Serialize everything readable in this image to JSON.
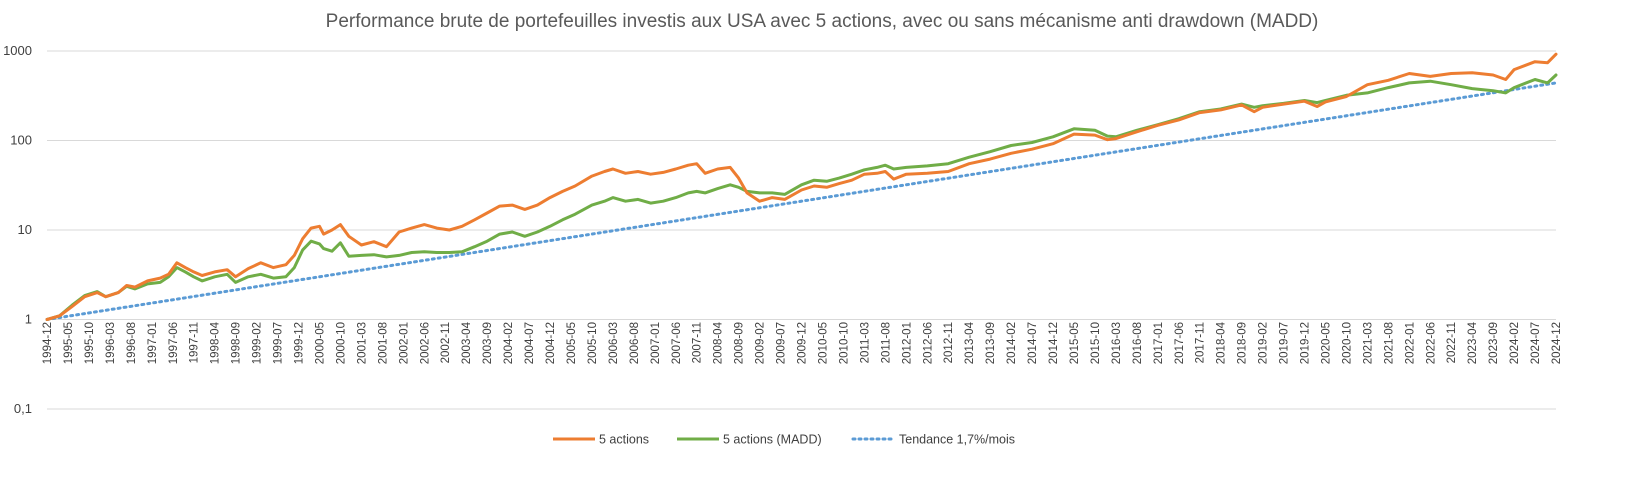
{
  "chart_data": {
    "type": "line",
    "title": "Performance brute de portefeuilles investis aux USA avec 5 actions, avec ou sans mécanisme anti drawdown (MADD)",
    "xlabel": "",
    "ylabel": "",
    "y_scale": "log",
    "ylim": [
      0.1,
      1000
    ],
    "y_ticks": [
      0.1,
      1,
      10,
      100,
      1000
    ],
    "y_tick_labels": [
      "0,1",
      "1",
      "10",
      "100",
      "1000"
    ],
    "x_range": [
      "1994-12",
      "2024-12"
    ],
    "x_tick_labels": [
      "1994-12",
      "1995-05",
      "1995-10",
      "1996-03",
      "1996-08",
      "1997-01",
      "1997-06",
      "1997-11",
      "1998-04",
      "1998-09",
      "1999-02",
      "1999-07",
      "1999-12",
      "2000-05",
      "2000-10",
      "2001-03",
      "2001-08",
      "2002-01",
      "2002-06",
      "2002-11",
      "2003-04",
      "2003-09",
      "2004-02",
      "2004-07",
      "2004-12",
      "2005-05",
      "2005-10",
      "2006-03",
      "2006-08",
      "2007-01",
      "2007-06",
      "2007-11",
      "2008-04",
      "2008-09",
      "2009-02",
      "2009-07",
      "2009-12",
      "2010-05",
      "2010-10",
      "2011-03",
      "2011-08",
      "2012-01",
      "2012-06",
      "2012-11",
      "2013-04",
      "2013-09",
      "2014-02",
      "2014-07",
      "2014-12",
      "2015-05",
      "2015-10",
      "2016-03",
      "2016-08",
      "2017-01",
      "2017-06",
      "2017-11",
      "2018-04",
      "2018-09",
      "2019-02",
      "2019-07",
      "2019-12",
      "2020-05",
      "2020-10",
      "2021-03",
      "2021-08",
      "2022-01",
      "2022-06",
      "2022-11",
      "2023-04",
      "2023-09",
      "2024-02",
      "2024-07",
      "2024-12"
    ],
    "grid": "horizontal",
    "legend_position": "bottom",
    "series": [
      {
        "name": "5 actions",
        "color": "#ED7D31",
        "style": "solid",
        "points": [
          [
            "1994-12",
            1
          ],
          [
            "1995-03",
            1.1
          ],
          [
            "1995-06",
            1.4
          ],
          [
            "1995-09",
            1.8
          ],
          [
            "1995-12",
            2.0
          ],
          [
            "1996-02",
            1.8
          ],
          [
            "1996-05",
            2.0
          ],
          [
            "1996-07",
            2.4
          ],
          [
            "1996-09",
            2.3
          ],
          [
            "1996-12",
            2.7
          ],
          [
            "1997-03",
            2.9
          ],
          [
            "1997-05",
            3.2
          ],
          [
            "1997-07",
            4.3
          ],
          [
            "1997-09",
            3.8
          ],
          [
            "1997-11",
            3.4
          ],
          [
            "1998-01",
            3.1
          ],
          [
            "1998-04",
            3.4
          ],
          [
            "1998-07",
            3.6
          ],
          [
            "1998-09",
            3.0
          ],
          [
            "1998-12",
            3.7
          ],
          [
            "1999-03",
            4.3
          ],
          [
            "1999-06",
            3.8
          ],
          [
            "1999-09",
            4.1
          ],
          [
            "1999-11",
            5.2
          ],
          [
            "2000-01",
            8.0
          ],
          [
            "2000-03",
            10.5
          ],
          [
            "2000-05",
            11.0
          ],
          [
            "2000-06",
            9.0
          ],
          [
            "2000-08",
            10.0
          ],
          [
            "2000-10",
            11.5
          ],
          [
            "2000-12",
            8.5
          ],
          [
            "2001-03",
            6.8
          ],
          [
            "2001-06",
            7.4
          ],
          [
            "2001-09",
            6.5
          ],
          [
            "2001-12",
            9.5
          ],
          [
            "2002-03",
            10.5
          ],
          [
            "2002-06",
            11.5
          ],
          [
            "2002-09",
            10.5
          ],
          [
            "2002-12",
            10.0
          ],
          [
            "2003-03",
            11.0
          ],
          [
            "2003-06",
            13.0
          ],
          [
            "2003-09",
            15.5
          ],
          [
            "2003-12",
            18.5
          ],
          [
            "2004-03",
            19.0
          ],
          [
            "2004-06",
            17.0
          ],
          [
            "2004-09",
            19.0
          ],
          [
            "2004-12",
            23.0
          ],
          [
            "2005-03",
            27.0
          ],
          [
            "2005-06",
            31.0
          ],
          [
            "2005-10",
            40.0
          ],
          [
            "2006-01",
            45.0
          ],
          [
            "2006-03",
            48.0
          ],
          [
            "2006-06",
            43.0
          ],
          [
            "2006-09",
            45.0
          ],
          [
            "2006-12",
            42.0
          ],
          [
            "2007-03",
            44.0
          ],
          [
            "2007-06",
            48.0
          ],
          [
            "2007-09",
            53.0
          ],
          [
            "2007-11",
            55.0
          ],
          [
            "2008-01",
            43.0
          ],
          [
            "2008-04",
            48.0
          ],
          [
            "2008-07",
            50.0
          ],
          [
            "2008-09",
            38.0
          ],
          [
            "2008-11",
            26.0
          ],
          [
            "2009-02",
            21.0
          ],
          [
            "2009-05",
            23.0
          ],
          [
            "2009-08",
            22.0
          ],
          [
            "2009-12",
            28.0
          ],
          [
            "2010-03",
            31.0
          ],
          [
            "2010-06",
            30.0
          ],
          [
            "2010-09",
            33.0
          ],
          [
            "2010-12",
            36.0
          ],
          [
            "2011-03",
            42.0
          ],
          [
            "2011-06",
            43.0
          ],
          [
            "2011-08",
            45.0
          ],
          [
            "2011-10",
            37.0
          ],
          [
            "2012-01",
            42.0
          ],
          [
            "2012-06",
            43.0
          ],
          [
            "2012-11",
            45.0
          ],
          [
            "2013-04",
            55.0
          ],
          [
            "2013-09",
            62.0
          ],
          [
            "2014-02",
            72.0
          ],
          [
            "2014-07",
            80.0
          ],
          [
            "2014-12",
            92.0
          ],
          [
            "2015-05",
            118.0
          ],
          [
            "2015-10",
            115.0
          ],
          [
            "2016-01",
            102.0
          ],
          [
            "2016-03",
            105.0
          ],
          [
            "2016-08",
            125.0
          ],
          [
            "2017-01",
            148.0
          ],
          [
            "2017-06",
            170.0
          ],
          [
            "2017-11",
            205.0
          ],
          [
            "2018-04",
            220.0
          ],
          [
            "2018-09",
            250.0
          ],
          [
            "2018-12",
            210.0
          ],
          [
            "2019-02",
            235.0
          ],
          [
            "2019-07",
            255.0
          ],
          [
            "2019-12",
            275.0
          ],
          [
            "2020-03",
            240.0
          ],
          [
            "2020-05",
            270.0
          ],
          [
            "2020-10",
            310.0
          ],
          [
            "2021-03",
            420.0
          ],
          [
            "2021-08",
            470.0
          ],
          [
            "2022-01",
            560.0
          ],
          [
            "2022-06",
            520.0
          ],
          [
            "2022-11",
            560.0
          ],
          [
            "2023-04",
            570.0
          ],
          [
            "2023-09",
            540.0
          ],
          [
            "2023-12",
            480.0
          ],
          [
            "2024-02",
            620.0
          ],
          [
            "2024-07",
            760.0
          ],
          [
            "2024-10",
            740.0
          ],
          [
            "2024-12",
            920.0
          ]
        ]
      },
      {
        "name": "5 actions (MADD)",
        "color": "#70AD47",
        "style": "solid",
        "points": [
          [
            "1994-12",
            1
          ],
          [
            "1995-03",
            1.1
          ],
          [
            "1995-06",
            1.45
          ],
          [
            "1995-09",
            1.85
          ],
          [
            "1995-12",
            2.05
          ],
          [
            "1996-02",
            1.8
          ],
          [
            "1996-05",
            2.0
          ],
          [
            "1996-07",
            2.35
          ],
          [
            "1996-09",
            2.2
          ],
          [
            "1996-12",
            2.5
          ],
          [
            "1997-03",
            2.6
          ],
          [
            "1997-05",
            3.0
          ],
          [
            "1997-07",
            3.8
          ],
          [
            "1997-09",
            3.4
          ],
          [
            "1997-11",
            3.0
          ],
          [
            "1998-01",
            2.7
          ],
          [
            "1998-04",
            3.0
          ],
          [
            "1998-07",
            3.2
          ],
          [
            "1998-09",
            2.6
          ],
          [
            "1998-12",
            3.0
          ],
          [
            "1999-03",
            3.2
          ],
          [
            "1999-06",
            2.9
          ],
          [
            "1999-09",
            3.0
          ],
          [
            "1999-11",
            3.8
          ],
          [
            "2000-01",
            6.0
          ],
          [
            "2000-03",
            7.5
          ],
          [
            "2000-05",
            7.0
          ],
          [
            "2000-06",
            6.2
          ],
          [
            "2000-08",
            5.8
          ],
          [
            "2000-10",
            7.2
          ],
          [
            "2000-12",
            5.1
          ],
          [
            "2001-03",
            5.2
          ],
          [
            "2001-06",
            5.3
          ],
          [
            "2001-09",
            5.0
          ],
          [
            "2001-12",
            5.2
          ],
          [
            "2002-03",
            5.6
          ],
          [
            "2002-06",
            5.7
          ],
          [
            "2002-09",
            5.6
          ],
          [
            "2002-12",
            5.6
          ],
          [
            "2003-03",
            5.7
          ],
          [
            "2003-06",
            6.5
          ],
          [
            "2003-09",
            7.5
          ],
          [
            "2003-12",
            9.0
          ],
          [
            "2004-03",
            9.5
          ],
          [
            "2004-06",
            8.5
          ],
          [
            "2004-09",
            9.5
          ],
          [
            "2004-12",
            11.0
          ],
          [
            "2005-03",
            13.0
          ],
          [
            "2005-06",
            15.0
          ],
          [
            "2005-10",
            19.0
          ],
          [
            "2006-01",
            21.0
          ],
          [
            "2006-03",
            23.0
          ],
          [
            "2006-06",
            21.0
          ],
          [
            "2006-09",
            22.0
          ],
          [
            "2006-12",
            20.0
          ],
          [
            "2007-03",
            21.0
          ],
          [
            "2007-06",
            23.0
          ],
          [
            "2007-09",
            26.0
          ],
          [
            "2007-11",
            27.0
          ],
          [
            "2008-01",
            26.0
          ],
          [
            "2008-04",
            29.0
          ],
          [
            "2008-07",
            32.0
          ],
          [
            "2008-09",
            30.0
          ],
          [
            "2008-11",
            27.0
          ],
          [
            "2009-02",
            26.0
          ],
          [
            "2009-05",
            26.0
          ],
          [
            "2009-08",
            25.0
          ],
          [
            "2009-12",
            32.0
          ],
          [
            "2010-03",
            36.0
          ],
          [
            "2010-06",
            35.0
          ],
          [
            "2010-09",
            38.0
          ],
          [
            "2010-12",
            42.0
          ],
          [
            "2011-03",
            47.0
          ],
          [
            "2011-06",
            50.0
          ],
          [
            "2011-08",
            53.0
          ],
          [
            "2011-10",
            48.0
          ],
          [
            "2012-01",
            50.0
          ],
          [
            "2012-06",
            52.0
          ],
          [
            "2012-11",
            55.0
          ],
          [
            "2013-04",
            65.0
          ],
          [
            "2013-09",
            75.0
          ],
          [
            "2014-02",
            88.0
          ],
          [
            "2014-07",
            95.0
          ],
          [
            "2014-12",
            110.0
          ],
          [
            "2015-05",
            135.0
          ],
          [
            "2015-10",
            130.0
          ],
          [
            "2016-01",
            112.0
          ],
          [
            "2016-03",
            110.0
          ],
          [
            "2016-08",
            130.0
          ],
          [
            "2017-01",
            150.0
          ],
          [
            "2017-06",
            175.0
          ],
          [
            "2017-11",
            210.0
          ],
          [
            "2018-04",
            225.0
          ],
          [
            "2018-09",
            255.0
          ],
          [
            "2018-12",
            235.0
          ],
          [
            "2019-02",
            245.0
          ],
          [
            "2019-07",
            260.0
          ],
          [
            "2019-12",
            280.0
          ],
          [
            "2020-03",
            265.0
          ],
          [
            "2020-05",
            280.0
          ],
          [
            "2020-10",
            320.0
          ],
          [
            "2021-03",
            340.0
          ],
          [
            "2021-08",
            390.0
          ],
          [
            "2022-01",
            440.0
          ],
          [
            "2022-06",
            460.0
          ],
          [
            "2022-11",
            420.0
          ],
          [
            "2023-04",
            380.0
          ],
          [
            "2023-09",
            360.0
          ],
          [
            "2023-12",
            340.0
          ],
          [
            "2024-02",
            390.0
          ],
          [
            "2024-07",
            480.0
          ],
          [
            "2024-10",
            440.0
          ],
          [
            "2024-12",
            540.0
          ]
        ]
      },
      {
        "name": "Tendance 1,7%/mois",
        "color": "#5B9BD5",
        "style": "dotted",
        "points": [
          [
            "1994-12",
            1
          ],
          [
            "2024-12",
            440
          ]
        ]
      }
    ]
  }
}
